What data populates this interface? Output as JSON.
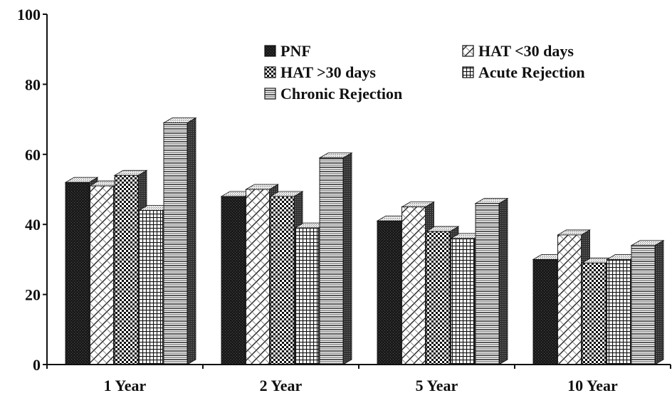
{
  "chart_data": {
    "type": "bar",
    "style": "3d-clustered-columns",
    "categories": [
      "1 Year",
      "2 Year",
      "5 Year",
      "10 Year"
    ],
    "series": [
      {
        "name": "PNF",
        "values": [
          52,
          48,
          41,
          30
        ],
        "pattern": "solid-dark"
      },
      {
        "name": "HAT <30 days",
        "values": [
          51,
          50,
          45,
          37
        ],
        "pattern": "diagonal-hatch"
      },
      {
        "name": "HAT >30 days",
        "values": [
          54,
          48,
          38,
          29
        ],
        "pattern": "checker"
      },
      {
        "name": "Acute Rejection",
        "values": [
          44,
          39,
          36,
          30
        ],
        "pattern": "grid"
      },
      {
        "name": "Chronic Rejection",
        "values": [
          69,
          59,
          46,
          34
        ],
        "pattern": "horizontal-lines"
      }
    ],
    "ylim": [
      0,
      100
    ],
    "yticks": [
      "0",
      "20",
      "40",
      "60",
      "80",
      "100"
    ],
    "grid": false,
    "legend_position": "top-right",
    "colors": {
      "ink": "#111111",
      "face": "#ffffff",
      "side": "#444444"
    }
  }
}
